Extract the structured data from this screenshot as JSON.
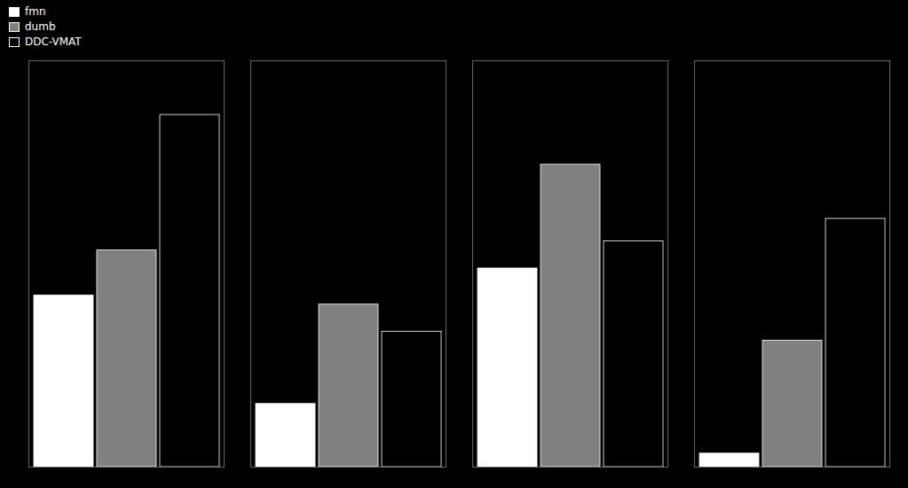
{
  "chart_data": {
    "type": "bar",
    "categories": [
      null,
      null,
      null,
      null
    ],
    "series": [
      {
        "name": "fmn",
        "color": "#ffffff",
        "values": [
          0.38,
          0.14,
          0.44,
          0.03
        ]
      },
      {
        "name": "dumb",
        "color": "#808080",
        "values": [
          0.48,
          0.36,
          0.67,
          0.28
        ]
      },
      {
        "name": "DDC-VMAT",
        "color": "#000000",
        "values": [
          0.78,
          0.3,
          0.5,
          0.55
        ]
      }
    ],
    "ylim": [
      0,
      0.9
    ],
    "legend": "upper left",
    "tick_labels": false,
    "grid": false
  }
}
